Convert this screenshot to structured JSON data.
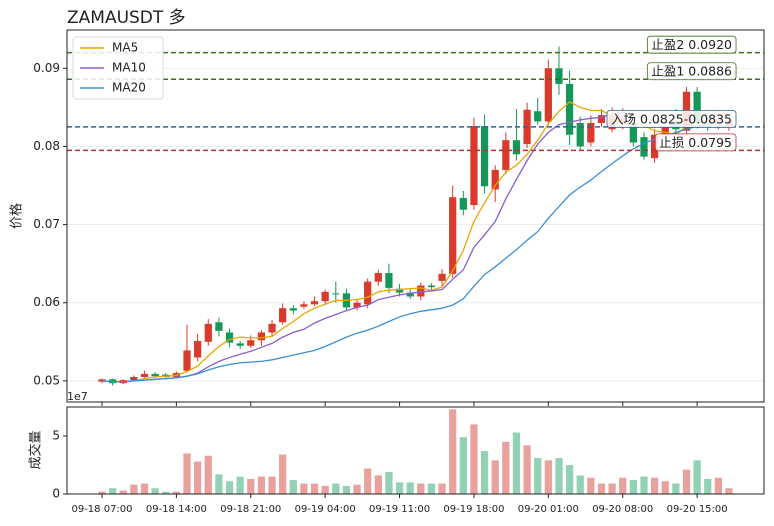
{
  "chart_data": {
    "type": "candlestick",
    "title": "ZAMAUSDT 多",
    "y_label": "价格",
    "x": [
      "09-18 07:00",
      "09-18 08:00",
      "09-18 09:00",
      "09-18 10:00",
      "09-18 11:00",
      "09-18 12:00",
      "09-18 13:00",
      "09-18 14:00",
      "09-18 15:00",
      "09-18 16:00",
      "09-18 17:00",
      "09-18 18:00",
      "09-18 19:00",
      "09-18 20:00",
      "09-18 21:00",
      "09-18 22:00",
      "09-18 23:00",
      "09-19 00:00",
      "09-19 01:00",
      "09-19 02:00",
      "09-19 03:00",
      "09-19 04:00",
      "09-19 05:00",
      "09-19 06:00",
      "09-19 07:00",
      "09-19 08:00",
      "09-19 09:00",
      "09-19 10:00",
      "09-19 11:00",
      "09-19 12:00",
      "09-19 13:00",
      "09-19 14:00",
      "09-19 15:00",
      "09-19 16:00",
      "09-19 17:00",
      "09-19 18:00",
      "09-19 19:00",
      "09-19 20:00",
      "09-19 21:00",
      "09-19 22:00",
      "09-19 23:00",
      "09-20 00:00",
      "09-20 01:00",
      "09-20 02:00",
      "09-20 03:00",
      "09-20 04:00",
      "09-20 05:00",
      "09-20 06:00",
      "09-20 07:00",
      "09-20 08:00",
      "09-20 09:00",
      "09-20 10:00",
      "09-20 11:00",
      "09-20 12:00",
      "09-20 13:00",
      "09-20 14:00",
      "09-20 15:00",
      "09-20 16:00",
      "09-20 17:00",
      "09-20 18:00"
    ],
    "open": [
      0.0499,
      0.0502,
      0.0497,
      0.0501,
      0.0505,
      0.0509,
      0.0508,
      0.0505,
      0.0513,
      0.053,
      0.055,
      0.0575,
      0.0562,
      0.0548,
      0.0545,
      0.0552,
      0.0562,
      0.0575,
      0.0593,
      0.0595,
      0.0598,
      0.0602,
      0.0612,
      0.0612,
      0.0594,
      0.0598,
      0.0627,
      0.0638,
      0.0618,
      0.0613,
      0.0608,
      0.0622,
      0.0628,
      0.0637,
      0.0734,
      0.0725,
      0.0826,
      0.0745,
      0.077,
      0.0808,
      0.0803,
      0.0845,
      0.0832,
      0.09,
      0.088,
      0.083,
      0.0805,
      0.083,
      0.0822,
      0.083,
      0.083,
      0.0812,
      0.0785,
      0.0815,
      0.0833,
      0.082,
      0.087,
      0.0833,
      0.0828,
      0.0826
    ],
    "high": [
      0.0503,
      0.0503,
      0.0502,
      0.0507,
      0.0513,
      0.0511,
      0.051,
      0.0512,
      0.0572,
      0.056,
      0.0579,
      0.0581,
      0.0567,
      0.0551,
      0.0558,
      0.0565,
      0.0578,
      0.0599,
      0.0597,
      0.0602,
      0.0608,
      0.0617,
      0.0627,
      0.0618,
      0.0605,
      0.0631,
      0.0642,
      0.065,
      0.0624,
      0.0617,
      0.0626,
      0.0625,
      0.0643,
      0.075,
      0.0743,
      0.0837,
      0.0841,
      0.0776,
      0.0818,
      0.0848,
      0.0856,
      0.0862,
      0.0911,
      0.0928,
      0.0897,
      0.0838,
      0.084,
      0.0848,
      0.085,
      0.0849,
      0.0842,
      0.0818,
      0.0822,
      0.083,
      0.0848,
      0.0876,
      0.0876,
      0.0843,
      0.0846,
      0.084
    ],
    "low": [
      0.0497,
      0.0494,
      0.0496,
      0.05,
      0.0504,
      0.0505,
      0.0504,
      0.0504,
      0.0511,
      0.0525,
      0.0545,
      0.0557,
      0.0543,
      0.0541,
      0.0542,
      0.0545,
      0.0556,
      0.0572,
      0.0585,
      0.0592,
      0.0596,
      0.0598,
      0.06,
      0.0589,
      0.059,
      0.0593,
      0.0622,
      0.0612,
      0.0608,
      0.0605,
      0.0603,
      0.0617,
      0.062,
      0.0632,
      0.0712,
      0.0719,
      0.074,
      0.0729,
      0.0765,
      0.0782,
      0.0798,
      0.0828,
      0.0827,
      0.0866,
      0.0802,
      0.0795,
      0.08,
      0.0825,
      0.0818,
      0.0822,
      0.08,
      0.0783,
      0.0779,
      0.0805,
      0.0814,
      0.0815,
      0.0823,
      0.082,
      0.0822,
      0.082
    ],
    "close": [
      0.0502,
      0.0497,
      0.0501,
      0.0505,
      0.0509,
      0.0506,
      0.0505,
      0.051,
      0.0539,
      0.0551,
      0.0573,
      0.0564,
      0.0549,
      0.0545,
      0.0552,
      0.0562,
      0.0573,
      0.0593,
      0.059,
      0.0598,
      0.0602,
      0.0614,
      0.0611,
      0.0594,
      0.06,
      0.0627,
      0.0638,
      0.0619,
      0.0613,
      0.0608,
      0.0622,
      0.062,
      0.0637,
      0.0735,
      0.0719,
      0.0826,
      0.0749,
      0.077,
      0.0808,
      0.079,
      0.0847,
      0.0832,
      0.09,
      0.088,
      0.0815,
      0.08,
      0.083,
      0.084,
      0.084,
      0.0837,
      0.0805,
      0.0787,
      0.0815,
      0.0826,
      0.0822,
      0.087,
      0.083,
      0.0825,
      0.0835,
      0.0833
    ],
    "up_color": "#d93a2b",
    "down_color": "#14985a",
    "series": [
      {
        "name": "MA5",
        "color": "#e6a800",
        "values": [
          0.05,
          0.0499,
          0.0499,
          0.05,
          0.0503,
          0.0505,
          0.0506,
          0.0507,
          0.0512,
          0.0519,
          0.0532,
          0.0544,
          0.0553,
          0.0556,
          0.0555,
          0.0555,
          0.0557,
          0.0567,
          0.0576,
          0.0586,
          0.0593,
          0.0598,
          0.0603,
          0.0603,
          0.0604,
          0.0607,
          0.0614,
          0.0616,
          0.0617,
          0.0618,
          0.0619,
          0.0616,
          0.062,
          0.0641,
          0.0667,
          0.0704,
          0.0728,
          0.075,
          0.0767,
          0.0776,
          0.079,
          0.0808,
          0.0829,
          0.0845,
          0.0857,
          0.085,
          0.0846,
          0.0846,
          0.0839,
          0.0829,
          0.083,
          0.0827,
          0.082,
          0.0818,
          0.0815,
          0.0826,
          0.083,
          0.0833,
          0.0834,
          0.0829
        ]
      },
      {
        "name": "MA10",
        "color": "#8a5fd0",
        "values": [
          0.05,
          0.0499,
          0.0499,
          0.05,
          0.0501,
          0.0502,
          0.0503,
          0.0504,
          0.0506,
          0.051,
          0.0518,
          0.0525,
          0.053,
          0.0534,
          0.0538,
          0.0543,
          0.0548,
          0.0556,
          0.0562,
          0.0566,
          0.0574,
          0.058,
          0.0585,
          0.059,
          0.0594,
          0.0597,
          0.0604,
          0.0607,
          0.061,
          0.0612,
          0.0614,
          0.0615,
          0.0617,
          0.063,
          0.0642,
          0.0671,
          0.0687,
          0.0704,
          0.0733,
          0.0758,
          0.0782,
          0.0803,
          0.0818,
          0.0828,
          0.0831,
          0.0834,
          0.0836,
          0.0837,
          0.0842,
          0.0843,
          0.084,
          0.0836,
          0.0833,
          0.0831,
          0.0826,
          0.0826,
          0.0826,
          0.0827,
          0.0826,
          0.0825
        ]
      },
      {
        "name": "MA20",
        "color": "#3b8fd6",
        "values": [
          0.05,
          0.0499,
          0.0499,
          0.05,
          0.0501,
          0.0502,
          0.0503,
          0.0504,
          0.0506,
          0.0509,
          0.0514,
          0.0518,
          0.0521,
          0.0523,
          0.0524,
          0.0525,
          0.0527,
          0.053,
          0.0533,
          0.0536,
          0.0539,
          0.0544,
          0.055,
          0.0556,
          0.0561,
          0.0565,
          0.057,
          0.0576,
          0.0582,
          0.0586,
          0.0589,
          0.0591,
          0.0593,
          0.0597,
          0.0605,
          0.0621,
          0.0636,
          0.0646,
          0.0657,
          0.0668,
          0.068,
          0.0691,
          0.0708,
          0.0723,
          0.0738,
          0.0748,
          0.0757,
          0.0768,
          0.0778,
          0.0788,
          0.0797,
          0.0804,
          0.0809,
          0.0813,
          0.0818,
          0.0822,
          0.0826,
          0.0829,
          0.0831,
          0.0833
        ]
      }
    ],
    "levels": [
      {
        "label": "止盈2 0.0920",
        "value": 0.092,
        "color": "#3f6f1e"
      },
      {
        "label": "止盈1 0.0886",
        "value": 0.0886,
        "color": "#3f6f1e"
      },
      {
        "label": "入场 0.0825-0.0835",
        "value": 0.0825,
        "color": "#2a6496"
      },
      {
        "label": "止损 0.0795",
        "value": 0.0795,
        "color": "#b0352f"
      }
    ],
    "ylim": [
      0.0473,
      0.0949
    ],
    "yticks": [
      0.05,
      0.06,
      0.07,
      0.08,
      0.09
    ],
    "grid": true,
    "legend": "upper left",
    "xticks": [
      "09-18 07:00",
      "09-18 14:00",
      "09-18 21:00",
      "09-19 04:00",
      "09-19 11:00",
      "09-19 18:00",
      "09-20 01:00",
      "09-20 08:00",
      "09-20 15:00"
    ],
    "volume": {
      "y_label": "成交量",
      "offset_label": "1e7",
      "values": [
        0.2,
        0.5,
        0.3,
        0.8,
        0.9,
        0.5,
        0.2,
        0.2,
        3.5,
        2.8,
        3.3,
        1.7,
        1.1,
        1.5,
        1.3,
        1.5,
        1.5,
        3.4,
        1.2,
        0.9,
        0.9,
        0.7,
        0.9,
        0.7,
        0.8,
        2.2,
        1.6,
        1.9,
        1.0,
        1.0,
        0.9,
        0.9,
        0.9,
        7.3,
        4.9,
        6.0,
        3.7,
        2.9,
        4.5,
        5.3,
        4.2,
        3.1,
        2.9,
        3.1,
        2.5,
        1.6,
        1.4,
        0.9,
        0.9,
        1.4,
        1.2,
        1.5,
        1.4,
        1.1,
        0.9,
        2.1,
        2.9,
        1.3,
        1.4,
        0.5
      ],
      "up_color": "#e8a19c",
      "down_color": "#93d1b5",
      "ylim": [
        0,
        7.5
      ],
      "yticks": [
        0,
        5
      ]
    }
  }
}
